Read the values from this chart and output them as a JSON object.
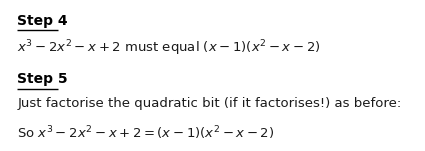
{
  "background_color": "#ffffff",
  "step4_heading": "Step 4",
  "step4_line": "$x^3 - 2x^2 - x + 2$ must equal $(x - 1)(x^2 - x - 2)$",
  "step5_heading": "Step 5",
  "step5_line1": "Just factorise the quadratic bit (if it factorises!) as before:",
  "step5_line2": "So $x^3 - 2x^2 - x + 2 = (x - 1)(x^2 - x - 2)$",
  "font_size_heading": 10.0,
  "font_size_body": 9.5,
  "text_color": "#1a1a1a",
  "heading_color": "#000000"
}
